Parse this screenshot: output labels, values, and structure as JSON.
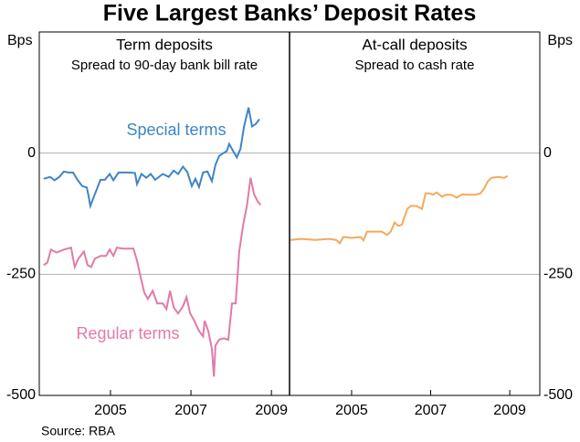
{
  "title": "Five Largest Banks’ Deposit Rates",
  "source": "Source: RBA",
  "chart_data": [
    {
      "type": "line",
      "title": "Term deposits",
      "subtitle": "Spread to 90-day bank bill rate",
      "ylabel": "Bps",
      "xlim": [
        2003.23,
        2009.45
      ],
      "xticks": [
        2005,
        2007,
        2009
      ],
      "ylim": [
        -500,
        250
      ],
      "yticks": [
        -500,
        -250,
        0
      ],
      "grid": true,
      "series": [
        {
          "name": "Special terms",
          "color": "#3d85c6",
          "x": [
            2003.34,
            2003.5,
            2003.61,
            2003.73,
            2003.84,
            2003.95,
            2004.07,
            2004.18,
            2004.3,
            2004.41,
            2004.45,
            2004.5,
            2004.61,
            2004.75,
            2004.86,
            2004.98,
            2005.07,
            2005.2,
            2005.43,
            2005.61,
            2005.66,
            2005.77,
            2005.89,
            2006.0,
            2006.11,
            2006.3,
            2006.45,
            2006.57,
            2006.68,
            2006.8,
            2006.91,
            2007.02,
            2007.11,
            2007.2,
            2007.3,
            2007.41,
            2007.52,
            2007.61,
            2007.7,
            2007.8,
            2007.89,
            2007.95,
            2008.05,
            2008.14,
            2008.23,
            2008.32,
            2008.43,
            2008.52,
            2008.61,
            2008.7
          ],
          "values": [
            -53,
            -49,
            -56,
            -49,
            -38,
            -40,
            -40,
            -55,
            -68,
            -71,
            -86,
            -109,
            -85,
            -55,
            -55,
            -43,
            -56,
            -40,
            -40,
            -41,
            -64,
            -43,
            -51,
            -43,
            -55,
            -43,
            -49,
            -36,
            -43,
            -28,
            -39,
            -68,
            -53,
            -70,
            -40,
            -38,
            -58,
            -24,
            -6,
            0,
            4,
            19,
            4,
            -9,
            9,
            55,
            94,
            55,
            60,
            70
          ]
        },
        {
          "name": "Regular terms",
          "color": "#e07aaa",
          "x": [
            2003.34,
            2003.43,
            2003.52,
            2003.66,
            2003.84,
            2004.02,
            2004.11,
            2004.2,
            2004.34,
            2004.43,
            2004.52,
            2004.61,
            2004.75,
            2004.89,
            2004.98,
            2005.07,
            2005.16,
            2005.3,
            2005.43,
            2005.57,
            2005.66,
            2005.75,
            2005.84,
            2005.93,
            2006.05,
            2006.16,
            2006.3,
            2006.39,
            2006.48,
            2006.57,
            2006.68,
            2006.8,
            2006.89,
            2006.98,
            2007.07,
            2007.2,
            2007.3,
            2007.34,
            2007.43,
            2007.52,
            2007.57,
            2007.61,
            2007.7,
            2007.82,
            2007.93,
            2008.02,
            2008.11,
            2008.2,
            2008.3,
            2008.39,
            2008.48,
            2008.57,
            2008.66,
            2008.73
          ],
          "values": [
            -231,
            -226,
            -199,
            -205,
            -199,
            -195,
            -235,
            -218,
            -203,
            -231,
            -235,
            -218,
            -212,
            -212,
            -199,
            -212,
            -195,
            -197,
            -197,
            -197,
            -222,
            -256,
            -288,
            -301,
            -284,
            -310,
            -310,
            -322,
            -284,
            -318,
            -331,
            -316,
            -297,
            -331,
            -344,
            -367,
            -378,
            -346,
            -367,
            -404,
            -461,
            -397,
            -385,
            -382,
            -385,
            -310,
            -310,
            -203,
            -147,
            -109,
            -51,
            -85,
            -100,
            -107
          ]
        }
      ]
    },
    {
      "type": "line",
      "title": "At-call deposits",
      "subtitle": "Spread to cash rate",
      "ylabel": "Bps",
      "xlim": [
        2003.43,
        2009.76
      ],
      "xticks": [
        2005,
        2007,
        2009
      ],
      "ylim": [
        -500,
        250
      ],
      "yticks": [
        -500,
        -250,
        0
      ],
      "grid": true,
      "series": [
        {
          "color": "#f5a95a",
          "x": [
            2003.45,
            2003.73,
            2004.08,
            2004.42,
            2004.61,
            2004.7,
            2004.79,
            2005.0,
            2005.23,
            2005.3,
            2005.39,
            2005.58,
            2005.76,
            2005.9,
            2005.99,
            2006.09,
            2006.18,
            2006.27,
            2006.41,
            2006.5,
            2006.64,
            2006.78,
            2006.87,
            2006.97,
            2007.06,
            2007.15,
            2007.29,
            2007.38,
            2007.52,
            2007.66,
            2007.8,
            2007.94,
            2008.12,
            2008.26,
            2008.35,
            2008.45,
            2008.54,
            2008.7,
            2008.86,
            2008.95
          ],
          "values": [
            -179,
            -177,
            -179,
            -177,
            -179,
            -186,
            -173,
            -175,
            -173,
            -180,
            -162,
            -162,
            -162,
            -169,
            -162,
            -143,
            -150,
            -148,
            -115,
            -109,
            -109,
            -115,
            -83,
            -83,
            -86,
            -81,
            -90,
            -86,
            -86,
            -92,
            -85,
            -86,
            -86,
            -83,
            -73,
            -58,
            -51,
            -49,
            -51,
            -47
          ]
        }
      ]
    }
  ]
}
